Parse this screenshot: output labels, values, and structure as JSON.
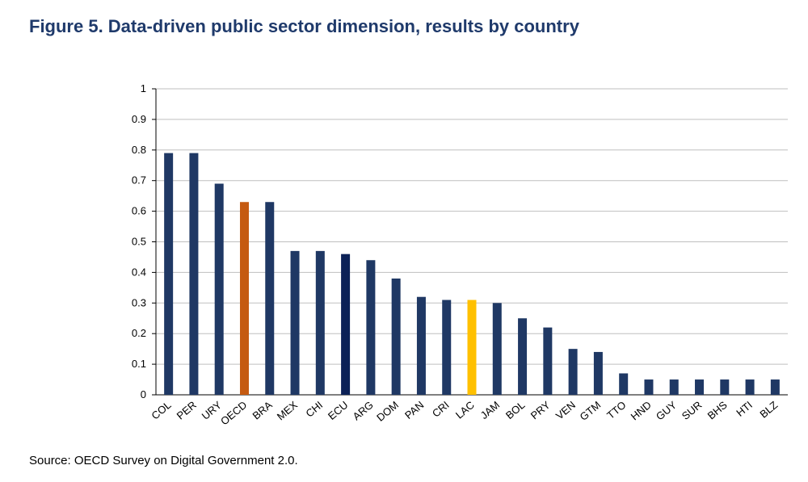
{
  "header": {
    "title": "Figure  5. Data-driven public sector dimension, results by country"
  },
  "footer": {
    "source": "Source: OECD Survey on Digital Government 2.0."
  },
  "colors": {
    "default_bar": "#1f3864",
    "ecu_bar": "#0c2157",
    "oecd_bar": "#c55a11",
    "lac_bar": "#ffc000",
    "grid": "#bfbfbf",
    "axis": "#000000"
  },
  "chart_data": {
    "type": "bar",
    "title": "",
    "xlabel": "",
    "ylabel": "",
    "ylim": [
      0,
      1
    ],
    "yticks": [
      "0",
      "0.1",
      "0.2",
      "0.3",
      "0.4",
      "0.5",
      "0.6",
      "0.7",
      "0.8",
      "0.9",
      "1"
    ],
    "grid": true,
    "categories": [
      "COL",
      "PER",
      "URY",
      "OECD",
      "BRA",
      "MEX",
      "CHI",
      "ECU",
      "ARG",
      "DOM",
      "PAN",
      "CRI",
      "LAC",
      "JAM",
      "BOL",
      "PRY",
      "VEN",
      "GTM",
      "TTO",
      "HND",
      "GUY",
      "SUR",
      "BHS",
      "HTI",
      "BLZ"
    ],
    "values": [
      0.79,
      0.79,
      0.69,
      0.63,
      0.63,
      0.47,
      0.47,
      0.46,
      0.44,
      0.38,
      0.32,
      0.31,
      0.31,
      0.3,
      0.25,
      0.22,
      0.15,
      0.14,
      0.07,
      0.05,
      0.05,
      0.05,
      0.05,
      0.05,
      0.05
    ],
    "highlight": {
      "OECD": "oecd_bar",
      "LAC": "lac_bar",
      "ECU": "ecu_bar"
    }
  }
}
